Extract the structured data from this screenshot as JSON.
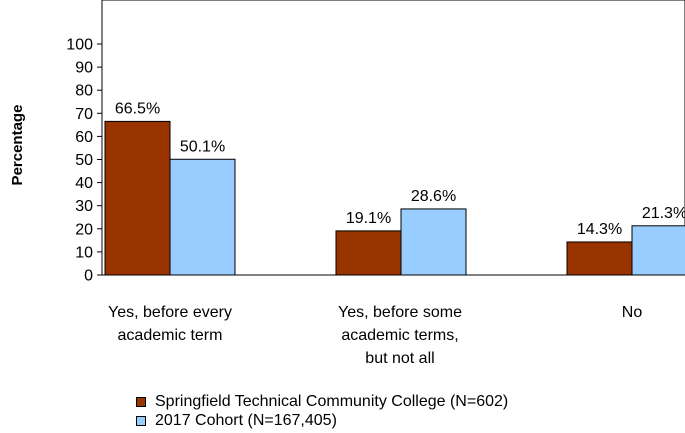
{
  "chart_data": {
    "type": "bar",
    "ylabel": "Percentage",
    "xlabel": "",
    "ylim": [
      0,
      100
    ],
    "yticks": [
      0,
      10,
      20,
      30,
      40,
      50,
      60,
      70,
      80,
      90,
      100
    ],
    "categories": [
      [
        "Yes, before every",
        "academic term"
      ],
      [
        "Yes, before some",
        "academic terms,",
        "but not all"
      ],
      [
        "No"
      ]
    ],
    "series": [
      {
        "name": "Springfield Technical Community College (N=602)",
        "color": "#993300",
        "values": [
          66.5,
          19.1,
          14.3
        ],
        "labels": [
          "66.5%",
          "19.1%",
          "14.3%"
        ]
      },
      {
        "name": "2017 Cohort (N=167,405)",
        "color": "#99ccff",
        "values": [
          50.1,
          28.6,
          21.3
        ],
        "labels": [
          "50.1%",
          "28.6%",
          "21.3%"
        ]
      }
    ],
    "grid": false,
    "legend_position": "bottom"
  }
}
